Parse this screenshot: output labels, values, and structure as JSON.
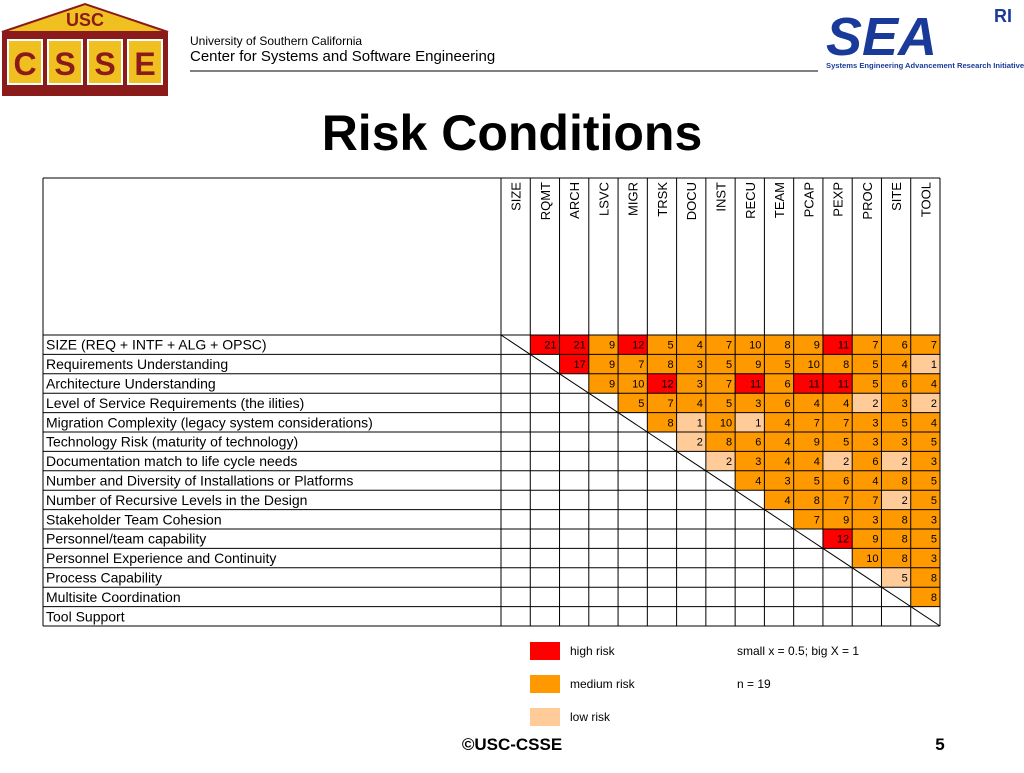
{
  "header": {
    "university": "University of Southern California",
    "center": "Center for Systems and Software Engineering",
    "logo_left": {
      "top": "USC",
      "letters": [
        "C",
        "S",
        "S",
        "E"
      ]
    },
    "logo_right": {
      "name": "SEA",
      "sup": "RI",
      "tagline": "Systems Engineering Advancement Research Initiative"
    }
  },
  "title": "Risk Conditions",
  "table": {
    "columns": [
      "SIZE",
      "RQMT",
      "ARCH",
      "LSVC",
      "MIGR",
      "TRSK",
      "DOCU",
      "INST",
      "RECU",
      "TEAM",
      "PCAP",
      "PEXP",
      "PROC",
      "SITE",
      "TOOL"
    ],
    "rows": [
      {
        "label": "SIZE (REQ + INTF + ALG + OPSC)",
        "values": [
          21,
          21,
          9,
          12,
          5,
          4,
          7,
          10,
          8,
          9,
          11,
          7,
          6,
          7
        ],
        "colors": [
          "#ff0000",
          "#ff0000",
          "#ff9900",
          "#ff0000",
          "#ff9900",
          "#ff9900",
          "#ff9900",
          "#ff9900",
          "#ff9900",
          "#ff9900",
          "#ff0000",
          "#ff9900",
          "#ff9900",
          "#ff9900"
        ]
      },
      {
        "label": "Requirements Understanding",
        "values": [
          17,
          9,
          7,
          8,
          3,
          5,
          9,
          5,
          10,
          8,
          5,
          4,
          1
        ],
        "colors": [
          "#ff0000",
          "#ff9900",
          "#ff9900",
          "#ff9900",
          "#ff9900",
          "#ff9900",
          "#ff9900",
          "#ff9900",
          "#ff9900",
          "#ff9900",
          "#ff9900",
          "#ff9900",
          "#ffcc99"
        ]
      },
      {
        "label": "Architecture Understanding",
        "values": [
          9,
          10,
          12,
          3,
          7,
          11,
          6,
          11,
          11,
          5,
          6,
          4
        ],
        "colors": [
          "#ff9900",
          "#ff9900",
          "#ff0000",
          "#ff9900",
          "#ff9900",
          "#ff0000",
          "#ff9900",
          "#ff0000",
          "#ff0000",
          "#ff9900",
          "#ff9900",
          "#ff9900"
        ]
      },
      {
        "label": "Level of Service Requirements (the ilities)",
        "values": [
          5,
          7,
          4,
          5,
          3,
          6,
          4,
          4,
          2,
          3,
          2
        ],
        "colors": [
          "#ff9900",
          "#ff9900",
          "#ff9900",
          "#ff9900",
          "#ff9900",
          "#ff9900",
          "#ff9900",
          "#ff9900",
          "#ffcc99",
          "#ff9900",
          "#ffcc99"
        ]
      },
      {
        "label": "Migration Complexity (legacy system considerations)",
        "values": [
          8,
          1,
          10,
          1,
          4,
          7,
          7,
          3,
          5,
          4
        ],
        "colors": [
          "#ff9900",
          "#ffcc99",
          "#ff9900",
          "#ffcc99",
          "#ff9900",
          "#ff9900",
          "#ff9900",
          "#ff9900",
          "#ff9900",
          "#ff9900"
        ]
      },
      {
        "label": "Technology Risk (maturity of technology)",
        "values": [
          2,
          8,
          6,
          4,
          9,
          5,
          3,
          3,
          5
        ],
        "colors": [
          "#ffcc99",
          "#ff9900",
          "#ff9900",
          "#ff9900",
          "#ff9900",
          "#ff9900",
          "#ff9900",
          "#ff9900",
          "#ff9900"
        ]
      },
      {
        "label": "Documentation match to life cycle needs",
        "values": [
          2,
          3,
          4,
          4,
          2,
          6,
          2,
          3
        ],
        "colors": [
          "#ffcc99",
          "#ff9900",
          "#ff9900",
          "#ff9900",
          "#ffcc99",
          "#ff9900",
          "#ffcc99",
          "#ff9900"
        ]
      },
      {
        "label": "Number and Diversity of Installations or Platforms",
        "values": [
          4,
          3,
          5,
          6,
          4,
          8,
          5
        ],
        "colors": [
          "#ff9900",
          "#ff9900",
          "#ff9900",
          "#ff9900",
          "#ff9900",
          "#ff9900",
          "#ff9900"
        ]
      },
      {
        "label": "Number of Recursive Levels in the Design",
        "values": [
          4,
          8,
          7,
          7,
          2,
          5
        ],
        "colors": [
          "#ff9900",
          "#ff9900",
          "#ff9900",
          "#ff9900",
          "#ffcc99",
          "#ff9900"
        ]
      },
      {
        "label": "Stakeholder Team Cohesion",
        "values": [
          7,
          9,
          3,
          8,
          3
        ],
        "colors": [
          "#ff9900",
          "#ff9900",
          "#ff9900",
          "#ff9900",
          "#ff9900"
        ]
      },
      {
        "label": "Personnel/team capability",
        "values": [
          12,
          9,
          8,
          5
        ],
        "colors": [
          "#ff0000",
          "#ff9900",
          "#ff9900",
          "#ff9900"
        ]
      },
      {
        "label": "Personnel Experience and Continuity",
        "values": [
          10,
          8,
          3
        ],
        "colors": [
          "#ff9900",
          "#ff9900",
          "#ff9900"
        ]
      },
      {
        "label": "Process Capability",
        "values": [
          5,
          8
        ],
        "colors": [
          "#ffcc99",
          "#ff9900"
        ]
      },
      {
        "label": "Multisite Coordination",
        "values": [
          8
        ],
        "colors": [
          "#ff9900"
        ]
      },
      {
        "label": "Tool Support",
        "values": [],
        "colors": []
      }
    ]
  },
  "legend": [
    {
      "label": "high risk",
      "color": "#ff0000"
    },
    {
      "label": "medium risk",
      "color": "#ff9900"
    },
    {
      "label": "low risk",
      "color": "#ffcc99"
    }
  ],
  "notes": [
    "small x = 0.5; big X = 1",
    "n = 19"
  ],
  "footer": {
    "copyright": "©USC-CSSE",
    "page": "5"
  }
}
